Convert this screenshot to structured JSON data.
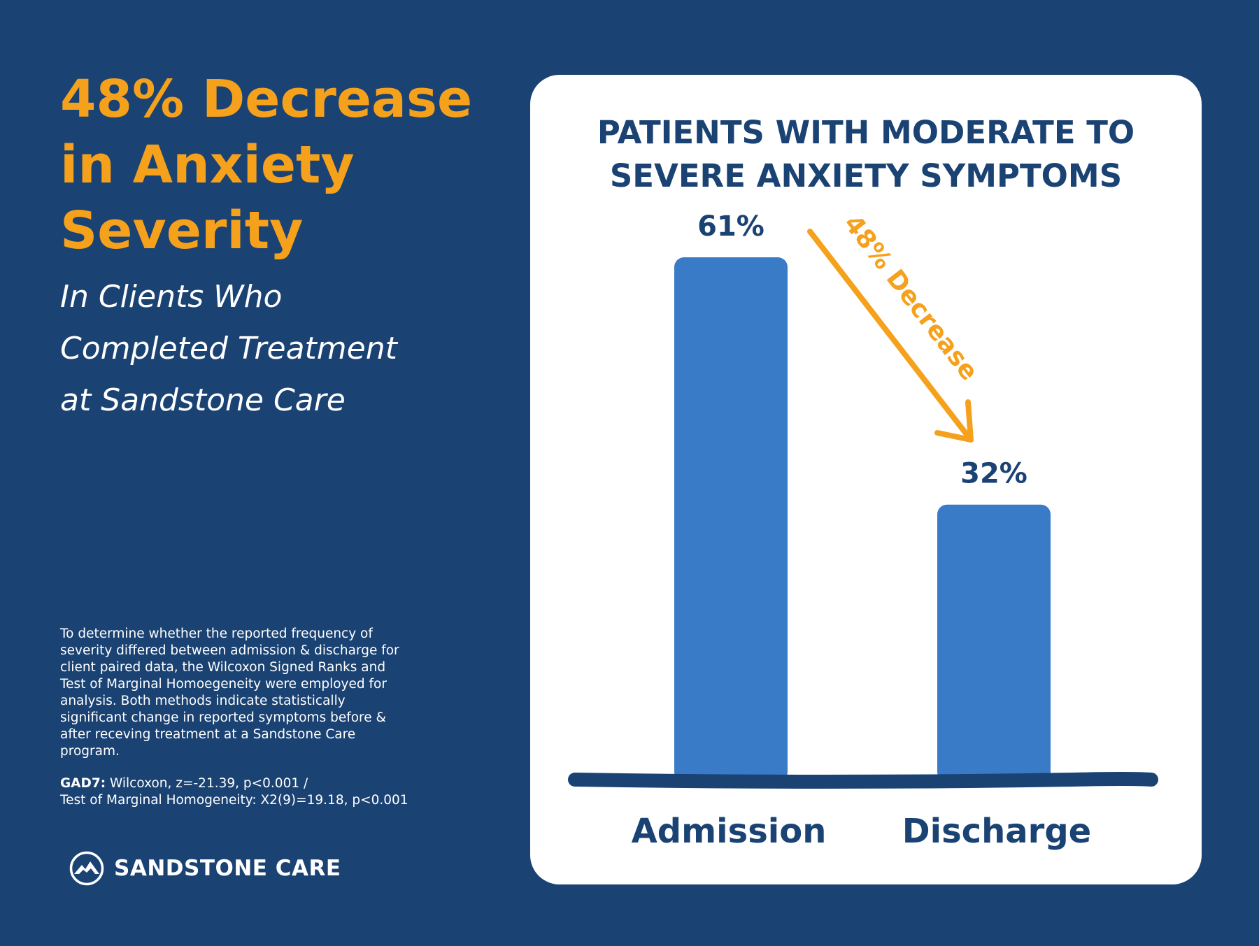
{
  "headline": {
    "line1": "48% Decrease",
    "line2": "in Anxiety",
    "line3": "Severity"
  },
  "subheadline": {
    "line1": "In Clients Who",
    "line2": "Completed Treatment",
    "line3": "at Sandstone Care"
  },
  "methods_note": {
    "lines": [
      "To determine whether the reported frequency of",
      "severity differed between admission & discharge for",
      "client paired data, the Wilcoxon Signed Ranks and",
      "Test of Marginal Homoegeneity were employed for",
      "analysis. Both methods indicate statistically",
      "significant change in reported symptoms before &",
      "after receving treatment at a Sandstone Care",
      "program."
    ]
  },
  "stats_note": {
    "label": "GAD7:",
    "line1": " Wilcoxon, z=-21.39, p<0.001 /",
    "line2": "Test of Marginal Homogeneity: X2(9)=19.18, p<0.001"
  },
  "logo": {
    "text": "SANDSTONE CARE",
    "icon": "mountain-logo-icon"
  },
  "colors": {
    "background": "#1a4273",
    "accent": "#f5a11c",
    "bar": "#3a7bc8",
    "card": "#ffffff"
  },
  "chart_data": {
    "type": "bar",
    "title_line1": "PATIENTS WITH MODERATE TO",
    "title_line2": "SEVERE ANXIETY SYMPTOMS",
    "categories": [
      "Admission",
      "Discharge"
    ],
    "values": [
      61,
      32
    ],
    "value_labels": [
      "61%",
      "32%"
    ],
    "ylim": [
      0,
      61
    ],
    "annotation": {
      "text": "48% Decrease",
      "icon": "down-arrow-icon"
    }
  }
}
